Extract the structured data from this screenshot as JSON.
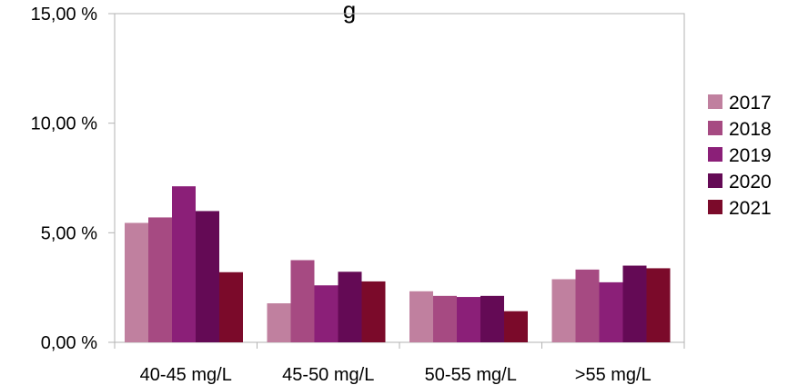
{
  "chart_data": {
    "type": "bar",
    "title": "g",
    "categories": [
      "40-45 mg/L",
      "45-50 mg/L",
      "50-55 mg/L",
      ">55 mg/L"
    ],
    "series": [
      {
        "name": "2017",
        "color": "#c0809f",
        "values": [
          5.45,
          1.78,
          2.33,
          2.88
        ]
      },
      {
        "name": "2018",
        "color": "#a64a82",
        "values": [
          5.7,
          3.75,
          2.12,
          3.32
        ]
      },
      {
        "name": "2019",
        "color": "#8b1f78",
        "values": [
          7.12,
          2.6,
          2.07,
          2.74
        ]
      },
      {
        "name": "2020",
        "color": "#640a55",
        "values": [
          5.99,
          3.22,
          2.12,
          3.5
        ]
      },
      {
        "name": "2021",
        "color": "#7b0a2a",
        "values": [
          3.2,
          2.78,
          1.42,
          3.38
        ]
      }
    ],
    "yticks": [
      "0,00 %",
      "5,00 %",
      "10,00 %",
      "15,00 %"
    ],
    "ylim": [
      0,
      15
    ],
    "ytick_values": [
      0,
      5,
      10,
      15
    ],
    "grid": false,
    "legend": "right"
  }
}
